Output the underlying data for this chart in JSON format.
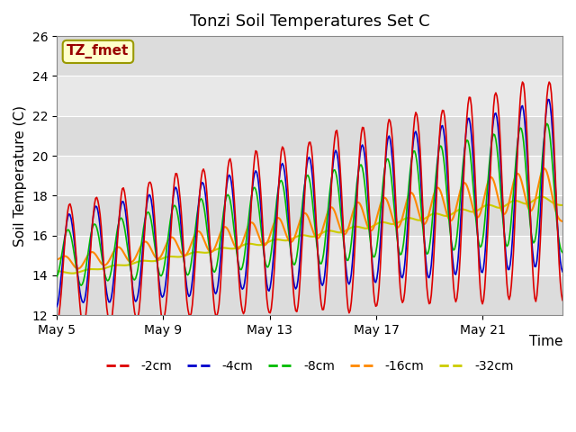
{
  "title": "Tonzi Soil Temperatures Set C",
  "xlabel": "Time",
  "ylabel": "Soil Temperature (C)",
  "ylim": [
    12,
    26
  ],
  "xlim": [
    0,
    19
  ],
  "annotation_text": "TZ_fmet",
  "annotation_color": "#990000",
  "annotation_bg": "#ffffcc",
  "annotation_border": "#999900",
  "background_plot": "#e8e8e8",
  "colors": {
    "-2cm": "#dd0000",
    "-4cm": "#0000cc",
    "-8cm": "#00bb00",
    "-16cm": "#ff8800",
    "-32cm": "#cccc00"
  },
  "legend_entries": [
    "-2cm",
    "-4cm",
    "-8cm",
    "-16cm",
    "-32cm"
  ],
  "tick_labels": [
    "May 5",
    "May 9",
    "May 13",
    "May 17",
    "May 21"
  ],
  "tick_positions": [
    0,
    4,
    8,
    12,
    16
  ],
  "title_fontsize": 13,
  "axis_label_fontsize": 11,
  "tick_fontsize": 10,
  "legend_fontsize": 10
}
